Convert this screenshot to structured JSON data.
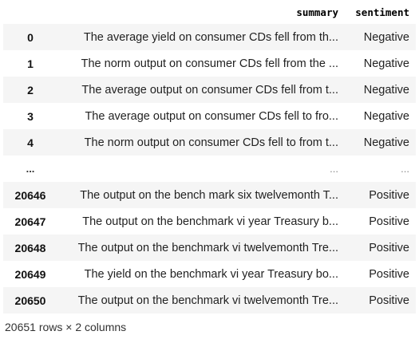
{
  "table": {
    "columns": [
      "",
      "summary",
      "sentiment"
    ],
    "rows": [
      {
        "index": "0",
        "summary": "The average yield on consumer CDs fell from th...",
        "sentiment": "Negative"
      },
      {
        "index": "1",
        "summary": "The norm output on consumer CDs fell from the ...",
        "sentiment": "Negative"
      },
      {
        "index": "2",
        "summary": "The average output on consumer CDs fell from t...",
        "sentiment": "Negative"
      },
      {
        "index": "3",
        "summary": "The average output on consumer CDs fell to fro...",
        "sentiment": "Negative"
      },
      {
        "index": "4",
        "summary": "The norm output on consumer CDs fell to from t...",
        "sentiment": "Negative"
      },
      {
        "index": "...",
        "summary": "...",
        "sentiment": "..."
      },
      {
        "index": "20646",
        "summary": "The output on the bench mark six twelvemonth T...",
        "sentiment": "Positive"
      },
      {
        "index": "20647",
        "summary": "The output on the benchmark vi year Treasury b...",
        "sentiment": "Positive"
      },
      {
        "index": "20648",
        "summary": "The output on the benchmark vi twelvemonth Tre...",
        "sentiment": "Positive"
      },
      {
        "index": "20649",
        "summary": "The yield on the benchmark vi year Treasury bo...",
        "sentiment": "Positive"
      },
      {
        "index": "20650",
        "summary": "The output on the benchmark vi twelvemonth Tre...",
        "sentiment": "Positive"
      }
    ]
  },
  "shape_text": "20651 rows × 2 columns"
}
